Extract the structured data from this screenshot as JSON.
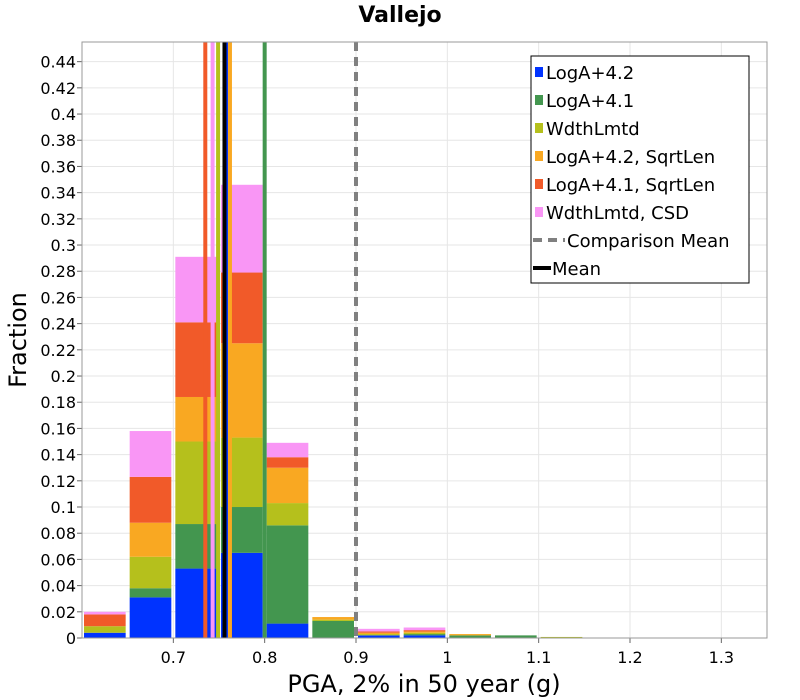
{
  "chart_data": {
    "type": "bar",
    "stacked": true,
    "title": "Vallejo",
    "xlabel": "PGA, 2% in 50 year (g)",
    "ylabel": "Fraction",
    "xlim": [
      0.6,
      1.35
    ],
    "ylim": [
      0,
      0.455
    ],
    "grid": true,
    "legend_position": "top-right",
    "bin_width": 0.05,
    "bin_starts": [
      0.6,
      0.65,
      0.7,
      0.75,
      0.8,
      0.85,
      0.9,
      0.95,
      1.0,
      1.05,
      1.1
    ],
    "x_ticks": [
      "0.7",
      "0.8",
      "0.9",
      "1",
      "1.1",
      "1.2",
      "1.3"
    ],
    "y_ticks": [
      "0",
      "0.02",
      "0.04",
      "0.06",
      "0.08",
      "0.1",
      "0.12",
      "0.14",
      "0.16",
      "0.18",
      "0.2",
      "0.22",
      "0.24",
      "0.26",
      "0.28",
      "0.3",
      "0.32",
      "0.34",
      "0.36",
      "0.38",
      "0.4",
      "0.42",
      "0.44"
    ],
    "series": [
      {
        "name": "LogA+4.2",
        "color": "#0033ff",
        "values": [
          0.004,
          0.031,
          0.053,
          0.065,
          0.011,
          0.0,
          0.002,
          0.002,
          0.0,
          0.0,
          0.0
        ]
      },
      {
        "name": "LogA+4.1",
        "color": "#43964f",
        "values": [
          0.0,
          0.007,
          0.034,
          0.035,
          0.075,
          0.013,
          0.0,
          0.001,
          0.002,
          0.002,
          0.0
        ]
      },
      {
        "name": "WdthLmtd",
        "color": "#b5c01c",
        "values": [
          0.005,
          0.024,
          0.063,
          0.053,
          0.017,
          0.001,
          0.001,
          0.001,
          0.0,
          0.0,
          0.0008
        ]
      },
      {
        "name": "LogA+4.2, SqrtLen",
        "color": "#f9a822",
        "values": [
          0.0,
          0.026,
          0.034,
          0.072,
          0.027,
          0.002,
          0.001,
          0.001,
          0.001,
          0.0,
          0.0
        ]
      },
      {
        "name": "LogA+4.1, SqrtLen",
        "color": "#f15a29",
        "values": [
          0.009,
          0.035,
          0.057,
          0.054,
          0.008,
          0.0,
          0.001,
          0.001,
          0.0,
          0.0,
          0.0
        ]
      },
      {
        "name": "WdthLmtd, CSD",
        "color": "#f996f5",
        "values": [
          0.002,
          0.035,
          0.05,
          0.067,
          0.011,
          0.0,
          0.002,
          0.002,
          0.0,
          0.0,
          0.0
        ]
      }
    ],
    "vlines": [
      {
        "name": "LogA+4.1, SqrtLen",
        "x": 0.735,
        "color": "#f15a29",
        "style": "solid"
      },
      {
        "name": "WdthLmtd, CSD",
        "x": 0.743,
        "color": "#f996f5",
        "style": "solid"
      },
      {
        "name": "WdthLmtd",
        "x": 0.749,
        "color": "#b5c01c",
        "style": "solid"
      },
      {
        "name": "LogA+4.2",
        "x": 0.758,
        "color": "#0033ff",
        "style": "solid"
      },
      {
        "name": "LogA+4.2, SqrtLen",
        "x": 0.762,
        "color": "#f9a822",
        "style": "solid"
      },
      {
        "name": "LogA+4.1",
        "x": 0.8,
        "color": "#43964f",
        "style": "solid"
      },
      {
        "name": "Comparison Mean",
        "x": 0.9,
        "color": "#808080",
        "style": "dashed"
      },
      {
        "name": "Mean",
        "x": 0.756,
        "color": "#000000",
        "style": "solid"
      }
    ],
    "legend": [
      {
        "label": "LogA+4.2",
        "color": "#0033ff",
        "kind": "box"
      },
      {
        "label": "LogA+4.1",
        "color": "#43964f",
        "kind": "box"
      },
      {
        "label": "WdthLmtd",
        "color": "#b5c01c",
        "kind": "box"
      },
      {
        "label": "LogA+4.2, SqrtLen",
        "color": "#f9a822",
        "kind": "box"
      },
      {
        "label": "LogA+4.1, SqrtLen",
        "color": "#f15a29",
        "kind": "box"
      },
      {
        "label": "WdthLmtd, CSD",
        "color": "#f996f5",
        "kind": "box"
      },
      {
        "label": "Comparison Mean",
        "color": "#808080",
        "kind": "dash"
      },
      {
        "label": "Mean",
        "color": "#000000",
        "kind": "line"
      }
    ]
  }
}
